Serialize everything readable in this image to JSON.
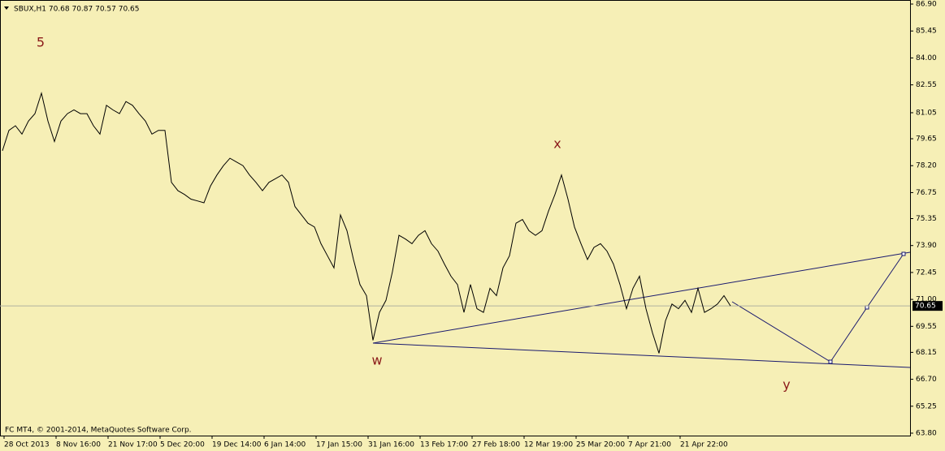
{
  "chart_data": {
    "type": "line",
    "title": "SBUX,H1  70.68 70.87 70.57 70.65",
    "footer": "FC MT4, © 2001-2014, MetaQuotes Software Corp.",
    "color": "#000000",
    "last_price": 70.65,
    "wave_labels": [
      "5",
      "x",
      "w",
      "y"
    ],
    "x_labels": [
      "28 Oct 2013",
      "8 Nov 16:00",
      "21 Nov 17:00",
      "5 Dec 20:00",
      "19 Dec 14:00",
      "6 Jan 14:00",
      "17 Jan 15:00",
      "31 Jan 16:00",
      "13 Feb 17:00",
      "27 Feb 18:00",
      "12 Mar 19:00",
      "25 Mar 20:00",
      "7 Apr 21:00",
      "21 Apr 22:00"
    ],
    "values": [
      79.0,
      80.1,
      80.35,
      79.9,
      80.6,
      81.0,
      82.1,
      80.6,
      79.5,
      80.6,
      81.0,
      81.2,
      81.0,
      81.0,
      80.35,
      79.9,
      81.45,
      81.2,
      81.0,
      81.65,
      81.45,
      81.0,
      80.6,
      79.9,
      80.1,
      80.1,
      77.3,
      76.85,
      76.65,
      76.4,
      76.3,
      76.2,
      77.1,
      77.7,
      78.2,
      78.6,
      78.4,
      78.2,
      77.7,
      77.3,
      76.85,
      77.3,
      77.5,
      77.7,
      77.3,
      76.0,
      75.55,
      75.1,
      74.9,
      74.0,
      73.35,
      72.7,
      75.55,
      74.7,
      73.15,
      71.8,
      71.2,
      68.8,
      70.3,
      70.95,
      72.5,
      74.45,
      74.25,
      74.0,
      74.45,
      74.7,
      74.0,
      73.6,
      72.9,
      72.25,
      71.8,
      70.3,
      71.8,
      70.5,
      70.3,
      71.6,
      71.2,
      72.7,
      73.35,
      75.1,
      75.3,
      74.7,
      74.45,
      74.7,
      75.75,
      76.65,
      77.7,
      76.4,
      74.9,
      74.0,
      73.15,
      73.8,
      74.0,
      73.6,
      72.9,
      71.8,
      70.5,
      71.6,
      72.25,
      70.5,
      69.2,
      68.1,
      69.85,
      70.75,
      70.5,
      70.95,
      70.3,
      71.6,
      70.3,
      70.5,
      70.75,
      71.2,
      70.65
    ],
    "ylim": [
      63.8,
      86.9
    ],
    "yticks": [
      {
        "value": 86.9,
        "label": "86.90"
      },
      85.45,
      {
        "value": 84,
        "label": "84.00"
      },
      82.55,
      81.05,
      79.65,
      {
        "value": 78.2,
        "label": "78.20"
      },
      76.75,
      75.35,
      {
        "value": 73.9,
        "label": "73.90"
      },
      72.45,
      {
        "value": 71,
        "label": "71.00"
      },
      69.55,
      68.15,
      {
        "value": 66.7,
        "label": "66.70"
      },
      65.25,
      {
        "value": 63.8,
        "label": "63.80"
      }
    ]
  }
}
